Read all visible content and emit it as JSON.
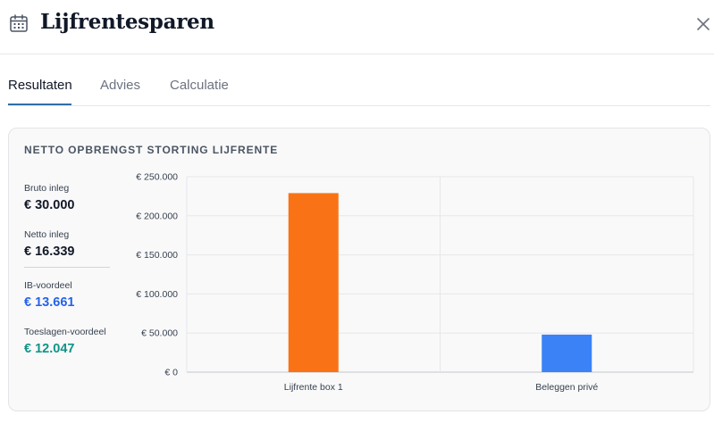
{
  "header": {
    "title": "Lijfrentesparen",
    "icon": "calendar-icon",
    "close_icon": "close-icon"
  },
  "tabs": [
    {
      "label": "Resultaten",
      "active": true
    },
    {
      "label": "Advies",
      "active": false
    },
    {
      "label": "Calculatie",
      "active": false
    }
  ],
  "card": {
    "title": "NETTO OPBRENGST STORTING LIJFRENTE",
    "stats": [
      {
        "label": "Bruto inleg",
        "value": "€ 30.000"
      },
      {
        "label": "Netto inleg",
        "value": "€ 16.339"
      },
      {
        "label": "IB-voordeel",
        "value": "€ 13.661"
      },
      {
        "label": "Toeslagen-voordeel",
        "value": "€ 12.047"
      }
    ]
  },
  "colors": {
    "accent": "#2f6fa8",
    "ib_voordeel": "#2563eb",
    "toeslagen_voordeel": "#0f9488"
  },
  "chart_data": {
    "type": "bar",
    "categories": [
      "Lijfrente box 1",
      "Beleggen privé"
    ],
    "values": [
      229000,
      48000
    ],
    "colors": [
      "#f97316",
      "#3b82f6"
    ],
    "ylim": [
      0,
      250000
    ],
    "yticks": [
      0,
      50000,
      100000,
      150000,
      200000,
      250000
    ],
    "ytick_labels": [
      "€ 0",
      "€ 50.000",
      "€ 100.000",
      "€ 150.000",
      "€ 200.000",
      "€ 250.000"
    ],
    "grid": true,
    "legend": "none"
  }
}
